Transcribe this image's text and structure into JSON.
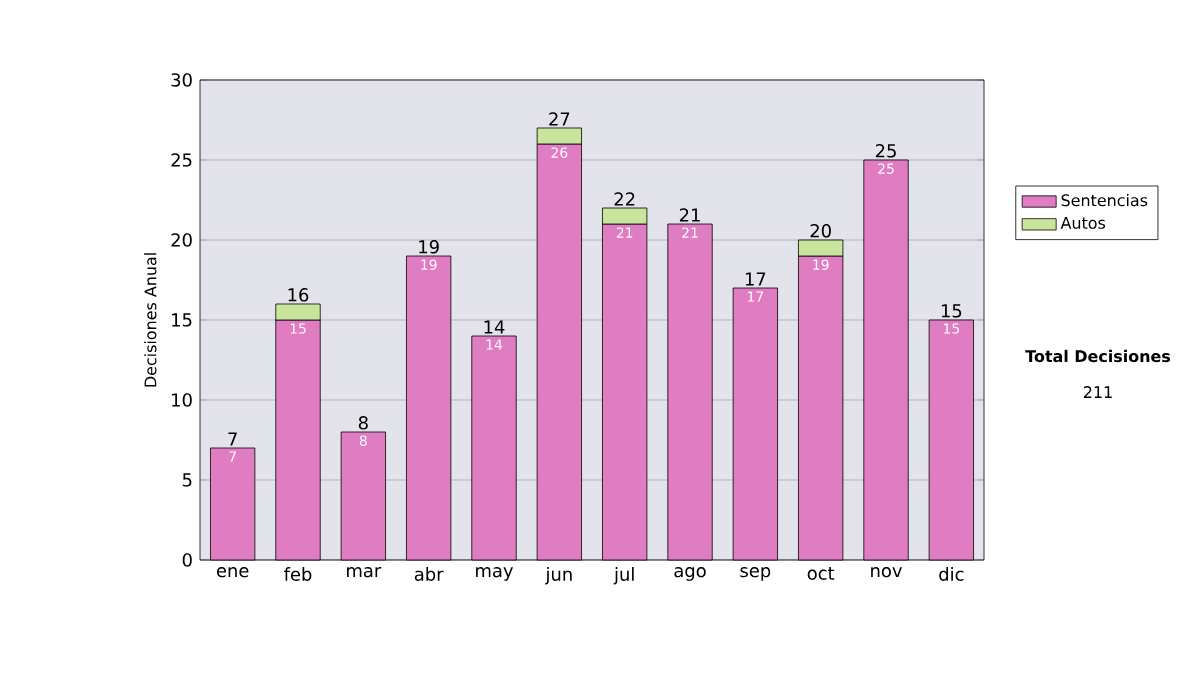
{
  "chart_data": {
    "type": "bar",
    "stacked": true,
    "ylabel": "Decisiones Anual",
    "categories": [
      "ene",
      "feb",
      "mar",
      "abr",
      "may",
      "jun",
      "jul",
      "ago",
      "sep",
      "oct",
      "nov",
      "dic"
    ],
    "series": [
      {
        "name": "Sentencias",
        "color": "#e07cc2",
        "values": [
          7,
          15,
          8,
          19,
          14,
          26,
          21,
          21,
          17,
          19,
          25,
          15
        ],
        "value_labels": [
          "7",
          "15",
          "8",
          "19",
          "14",
          "26",
          "21",
          "21",
          "17",
          "19",
          "25",
          "15"
        ]
      },
      {
        "name": "Autos",
        "color": "#c9e59b",
        "values": [
          null,
          1,
          null,
          null,
          null,
          1,
          1,
          null,
          null,
          1,
          null,
          null
        ]
      }
    ],
    "totals": [
      "7",
      "16",
      "8",
      "19",
      "14",
      "27",
      "22",
      "21",
      "17",
      "20",
      "25",
      "15"
    ],
    "ylim": [
      0,
      30
    ],
    "yticks": [
      0,
      5,
      10,
      15,
      20,
      25,
      30
    ],
    "grid": "y",
    "legend": "right",
    "annotations": [
      "Total Decisiones",
      "211"
    ]
  }
}
